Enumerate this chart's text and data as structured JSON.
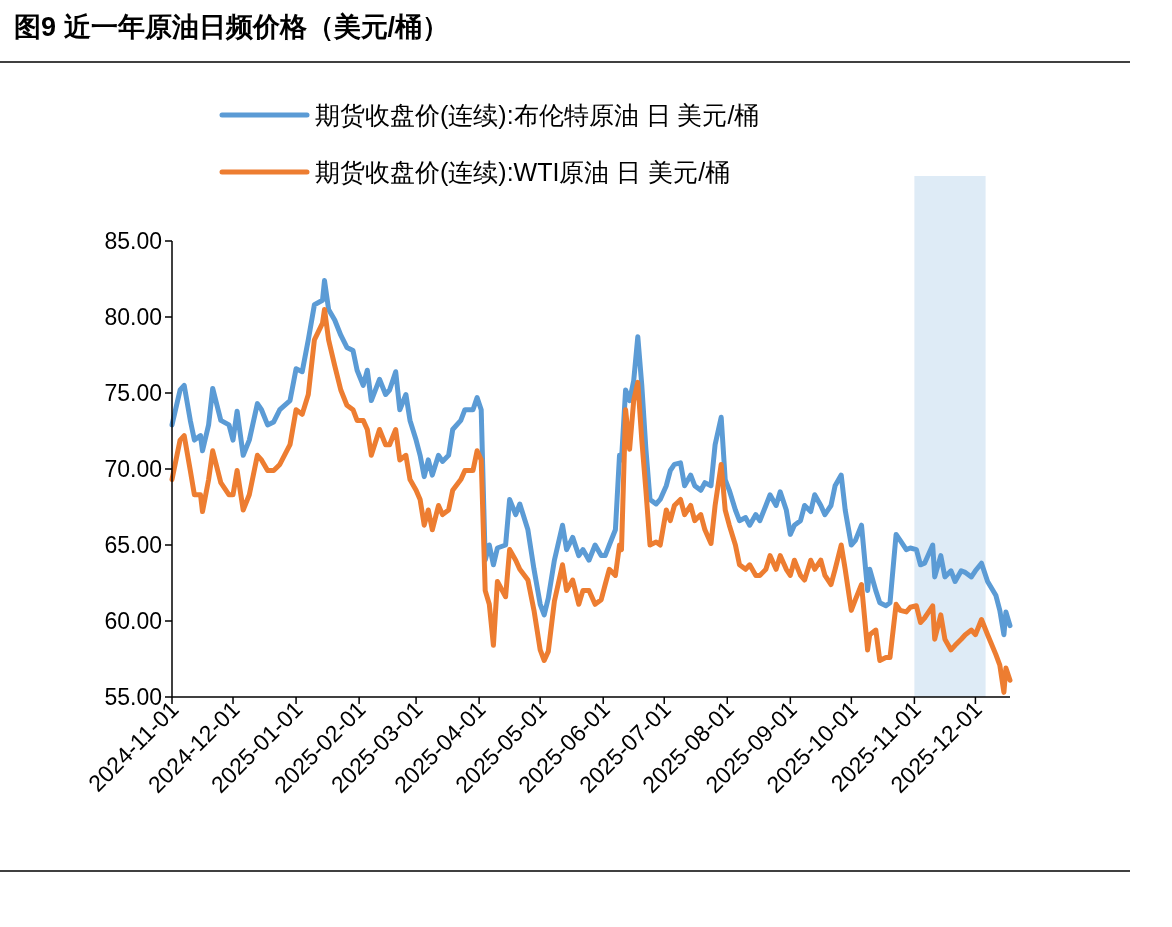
{
  "chart_data": {
    "type": "line",
    "title": "图9  近一年原油日频价格（美元/桶）",
    "x": [
      "2024-11-01",
      "2024-11-05",
      "2024-11-07",
      "2024-11-10",
      "2024-11-12",
      "2024-11-15",
      "2024-11-16",
      "2024-11-19",
      "2024-11-21",
      "2024-11-25",
      "2024-11-29",
      "2024-12-01",
      "2024-12-03",
      "2024-12-06",
      "2024-12-09",
      "2024-12-13",
      "2024-12-15",
      "2024-12-18",
      "2024-12-21",
      "2024-12-24",
      "2024-12-29",
      "2025-01-01",
      "2025-01-04",
      "2025-01-07",
      "2025-01-10",
      "2025-01-14",
      "2025-01-15",
      "2025-01-17",
      "2025-01-20",
      "2025-01-23",
      "2025-01-26",
      "2025-01-29",
      "2025-01-31",
      "2025-02-03",
      "2025-02-05",
      "2025-02-07",
      "2025-02-11",
      "2025-02-14",
      "2025-02-16",
      "2025-02-19",
      "2025-02-21",
      "2025-02-24",
      "2025-02-26",
      "2025-03-01",
      "2025-03-03",
      "2025-03-05",
      "2025-03-07",
      "2025-03-09",
      "2025-03-12",
      "2025-03-14",
      "2025-03-17",
      "2025-03-19",
      "2025-03-23",
      "2025-03-25",
      "2025-03-29",
      "2025-03-31",
      "2025-04-02",
      "2025-04-04",
      "2025-04-06",
      "2025-04-08",
      "2025-04-10",
      "2025-04-14",
      "2025-04-16",
      "2025-04-19",
      "2025-04-21",
      "2025-04-25",
      "2025-04-28",
      "2025-05-01",
      "2025-05-03",
      "2025-05-05",
      "2025-05-08",
      "2025-05-12",
      "2025-05-14",
      "2025-05-17",
      "2025-05-20",
      "2025-05-22",
      "2025-05-25",
      "2025-05-28",
      "2025-05-31",
      "2025-06-02",
      "2025-06-04",
      "2025-06-07",
      "2025-06-09",
      "2025-06-10",
      "2025-06-12",
      "2025-06-14",
      "2025-06-16",
      "2025-06-18",
      "2025-06-20",
      "2025-06-22",
      "2025-06-24",
      "2025-06-27",
      "2025-06-29",
      "2025-07-02",
      "2025-07-04",
      "2025-07-06",
      "2025-07-09",
      "2025-07-11",
      "2025-07-14",
      "2025-07-16",
      "2025-07-19",
      "2025-07-21",
      "2025-07-24",
      "2025-07-26",
      "2025-07-29",
      "2025-07-31",
      "2025-08-02",
      "2025-08-05",
      "2025-08-07",
      "2025-08-10",
      "2025-08-12",
      "2025-08-15",
      "2025-08-17",
      "2025-08-20",
      "2025-08-22",
      "2025-08-25",
      "2025-08-27",
      "2025-08-30",
      "2025-09-01",
      "2025-09-03",
      "2025-09-06",
      "2025-09-08",
      "2025-09-11",
      "2025-09-13",
      "2025-09-16",
      "2025-09-18",
      "2025-09-21",
      "2025-09-23",
      "2025-09-26",
      "2025-09-28",
      "2025-10-01",
      "2025-10-03",
      "2025-10-06",
      "2025-10-09",
      "2025-10-10",
      "2025-10-13",
      "2025-10-15",
      "2025-10-18",
      "2025-10-20",
      "2025-10-23",
      "2025-10-25",
      "2025-10-28",
      "2025-10-30",
      "2025-11-02",
      "2025-11-04",
      "2025-11-06",
      "2025-11-10",
      "2025-11-11",
      "2025-11-14",
      "2025-11-16",
      "2025-11-19",
      "2025-11-21",
      "2025-11-24",
      "2025-11-26",
      "2025-11-29",
      "2025-12-01",
      "2025-12-04",
      "2025-12-07",
      "2025-12-11",
      "2025-12-13",
      "2025-12-15",
      "2025-12-16",
      "2025-12-18"
    ],
    "series": [
      {
        "name": "期货收盘价(连续):布伦特原油 日 美元/桶",
        "color": "#5b9bd5",
        "values": [
          72.9,
          75.2,
          75.5,
          73.2,
          71.9,
          72.2,
          71.2,
          72.9,
          75.3,
          73.2,
          72.9,
          71.9,
          73.8,
          70.9,
          71.9,
          74.3,
          73.9,
          72.9,
          73.1,
          73.9,
          74.5,
          76.6,
          76.4,
          78.5,
          80.8,
          81.1,
          82.4,
          80.5,
          79.8,
          78.8,
          78.0,
          77.8,
          76.5,
          75.5,
          76.5,
          74.5,
          75.9,
          74.9,
          75.2,
          76.4,
          73.9,
          74.9,
          73.2,
          71.9,
          70.9,
          69.5,
          70.6,
          69.6,
          70.9,
          70.5,
          70.9,
          72.6,
          73.2,
          73.9,
          73.9,
          74.7,
          73.9,
          64.0,
          65.0,
          63.7,
          64.8,
          65.0,
          68.0,
          67.0,
          67.7,
          66.0,
          63.4,
          61.1,
          60.4,
          61.5,
          64.0,
          66.3,
          64.7,
          65.5,
          64.3,
          64.7,
          64.0,
          65.0,
          64.3,
          64.3,
          65.0,
          66.0,
          70.9,
          70.6,
          75.2,
          74.5,
          75.8,
          78.7,
          75.5,
          71.3,
          68.0,
          67.7,
          68.0,
          68.9,
          69.9,
          70.3,
          70.4,
          68.9,
          69.6,
          68.9,
          68.6,
          69.1,
          68.9,
          71.6,
          73.4,
          69.3,
          68.6,
          67.3,
          66.6,
          66.8,
          66.3,
          67.0,
          66.6,
          67.6,
          68.3,
          67.6,
          68.5,
          67.3,
          65.7,
          66.3,
          66.6,
          67.6,
          67.2,
          68.3,
          67.6,
          67.0,
          67.6,
          68.9,
          69.6,
          67.3,
          65.0,
          65.3,
          66.3,
          62.0,
          63.4,
          62.0,
          61.2,
          61.0,
          61.2,
          65.7,
          65.3,
          64.7,
          64.8,
          64.7,
          63.7,
          63.8,
          65.0,
          62.9,
          64.3,
          62.9,
          63.3,
          62.6,
          63.3,
          63.2,
          62.9,
          63.3,
          63.8,
          62.6,
          61.7,
          60.7,
          59.1,
          60.6,
          59.7
        ]
      },
      {
        "name": "期货收盘价(连续):WTI原油 日 美元/桶",
        "color": "#ed7d31",
        "values": [
          69.3,
          71.9,
          72.2,
          69.9,
          68.3,
          68.3,
          67.2,
          69.3,
          71.2,
          69.1,
          68.3,
          68.3,
          69.9,
          67.3,
          68.3,
          70.9,
          70.6,
          69.9,
          69.9,
          70.3,
          71.6,
          73.9,
          73.6,
          74.9,
          78.5,
          79.6,
          80.5,
          78.5,
          76.8,
          75.2,
          74.2,
          73.9,
          73.2,
          73.2,
          72.6,
          70.9,
          72.6,
          71.6,
          71.6,
          72.6,
          70.6,
          70.9,
          69.3,
          68.6,
          68.0,
          66.3,
          67.3,
          66.0,
          67.6,
          67.0,
          67.3,
          68.6,
          69.3,
          69.9,
          69.9,
          71.2,
          70.6,
          62.0,
          61.1,
          58.4,
          62.6,
          61.6,
          64.7,
          64.0,
          63.4,
          62.7,
          60.7,
          58.1,
          57.4,
          58.0,
          61.3,
          63.7,
          62.0,
          62.7,
          61.1,
          62.0,
          62.0,
          61.1,
          61.4,
          62.4,
          63.4,
          63.0,
          65.0,
          64.7,
          73.9,
          71.3,
          74.5,
          75.7,
          71.9,
          68.6,
          65.0,
          65.2,
          65.0,
          67.3,
          66.6,
          67.6,
          68.0,
          67.0,
          67.6,
          66.6,
          67.0,
          66.0,
          65.1,
          67.6,
          70.3,
          67.3,
          66.3,
          65.0,
          63.7,
          63.4,
          63.7,
          63.0,
          63.0,
          63.4,
          64.3,
          63.4,
          64.3,
          63.4,
          63.0,
          64.0,
          63.0,
          62.7,
          64.0,
          63.4,
          64.0,
          63.0,
          62.4,
          63.4,
          65.0,
          63.4,
          60.7,
          61.4,
          62.4,
          58.1,
          59.1,
          59.4,
          57.4,
          57.6,
          57.6,
          61.1,
          60.7,
          60.6,
          60.9,
          61.0,
          59.9,
          60.2,
          61.0,
          58.8,
          60.4,
          58.8,
          58.1,
          58.4,
          58.8,
          59.1,
          59.4,
          59.1,
          60.1,
          59.1,
          57.8,
          57.1,
          55.3,
          56.9,
          56.1
        ]
      }
    ],
    "xlim": [
      "2024-11-01",
      "2025-12-18"
    ],
    "xticks": [
      "2024-11-01",
      "2024-12-01",
      "2025-01-01",
      "2025-02-01",
      "2025-03-01",
      "2025-04-01",
      "2025-05-01",
      "2025-06-01",
      "2025-07-01",
      "2025-08-01",
      "2025-09-01",
      "2025-10-01",
      "2025-11-01",
      "2025-12-01"
    ],
    "ylim": [
      55,
      85
    ],
    "yticks": [
      {
        "value": 55,
        "label": "55.00"
      },
      {
        "value": 60,
        "label": "60.00"
      },
      {
        "value": 65,
        "label": "65.00"
      },
      {
        "value": 70,
        "label": "70.00"
      },
      {
        "value": 75,
        "label": "75.00"
      },
      {
        "value": 80,
        "label": "80.00"
      },
      {
        "value": 85,
        "label": "85.00"
      }
    ],
    "bands": [
      {
        "axis": "x",
        "from": "2025-11-01",
        "to": "2025-12-06",
        "color": "#bdd7ee"
      }
    ],
    "legend": "top"
  }
}
